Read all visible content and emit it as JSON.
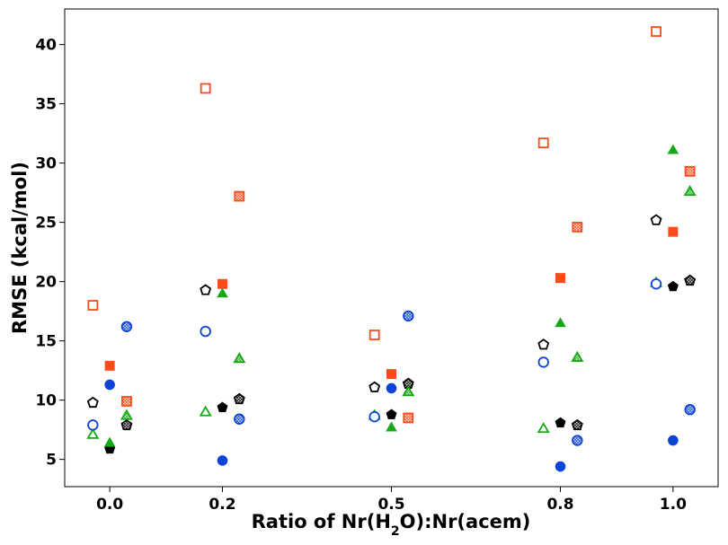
{
  "chart_data": {
    "type": "scatter",
    "title": "",
    "xlabel_parts": [
      "Ratio of Nr(H",
      "2",
      "O):Nr(acem)"
    ],
    "ylabel": "RMSE (kcal/mol)",
    "xlim": [
      -0.08,
      1.08
    ],
    "ylim": [
      2.7,
      43.0
    ],
    "x_ticks": [
      0.0,
      0.2,
      0.5,
      0.8,
      1.0
    ],
    "x_tick_labels": [
      "0.0",
      "0.2",
      "0.5",
      "0.8",
      "1.0"
    ],
    "y_ticks": [
      5,
      10,
      15,
      20,
      25,
      30,
      35,
      40
    ],
    "y_tick_labels": [
      "5",
      "10",
      "15",
      "20",
      "25",
      "30",
      "35",
      "40"
    ],
    "colors": {
      "orange": "#ff4a1c",
      "green": "#17a817",
      "blue": "#0c44d6",
      "black": "#000000"
    },
    "series": [
      {
        "name": "orange-open-square",
        "marker": "square",
        "style": "open",
        "color": "orange",
        "offset": -0.03,
        "values": [
          18.0,
          36.3,
          15.5,
          31.7,
          41.1
        ]
      },
      {
        "name": "orange-filled-square",
        "marker": "square",
        "style": "filled",
        "color": "orange",
        "offset": 0.0,
        "values": [
          12.9,
          19.8,
          12.2,
          20.3,
          24.2
        ]
      },
      {
        "name": "orange-hatched-square",
        "marker": "square",
        "style": "hatched",
        "color": "orange",
        "offset": 0.03,
        "values": [
          9.9,
          27.2,
          8.5,
          24.6,
          29.3
        ]
      },
      {
        "name": "black-open-pentagon",
        "marker": "pentagon",
        "style": "open",
        "color": "black",
        "offset": -0.03,
        "values": [
          9.8,
          19.3,
          11.1,
          14.7,
          25.2
        ]
      },
      {
        "name": "black-filled-pentagon",
        "marker": "pentagon",
        "style": "filled",
        "color": "black",
        "offset": 0.0,
        "values": [
          5.9,
          9.4,
          8.8,
          8.1,
          19.6
        ]
      },
      {
        "name": "black-hatched-pentagon",
        "marker": "pentagon",
        "style": "hatched",
        "color": "black",
        "offset": 0.03,
        "values": [
          7.9,
          10.1,
          11.4,
          7.9,
          20.1
        ]
      },
      {
        "name": "green-open-triangle",
        "marker": "triangle",
        "style": "open",
        "color": "green",
        "offset": -0.03,
        "values": [
          7.1,
          9.0,
          8.7,
          7.6,
          19.9
        ]
      },
      {
        "name": "green-filled-triangle",
        "marker": "triangle",
        "style": "filled",
        "color": "green",
        "offset": 0.0,
        "values": [
          6.4,
          19.0,
          7.7,
          16.5,
          31.1
        ]
      },
      {
        "name": "green-hatched-triangle",
        "marker": "triangle",
        "style": "hatched",
        "color": "green",
        "offset": 0.03,
        "values": [
          8.7,
          13.5,
          10.7,
          13.6,
          27.6
        ]
      },
      {
        "name": "blue-open-circle",
        "marker": "circle",
        "style": "open",
        "color": "blue",
        "offset": -0.03,
        "values": [
          7.9,
          15.8,
          8.6,
          13.2,
          19.8
        ]
      },
      {
        "name": "blue-filled-circle",
        "marker": "circle",
        "style": "filled",
        "color": "blue",
        "offset": 0.0,
        "values": [
          11.3,
          4.9,
          11.0,
          4.4,
          6.6
        ]
      },
      {
        "name": "blue-hatched-circle",
        "marker": "circle",
        "style": "hatched",
        "color": "blue",
        "offset": 0.03,
        "values": [
          16.2,
          8.4,
          17.1,
          6.6,
          9.2
        ]
      }
    ]
  }
}
